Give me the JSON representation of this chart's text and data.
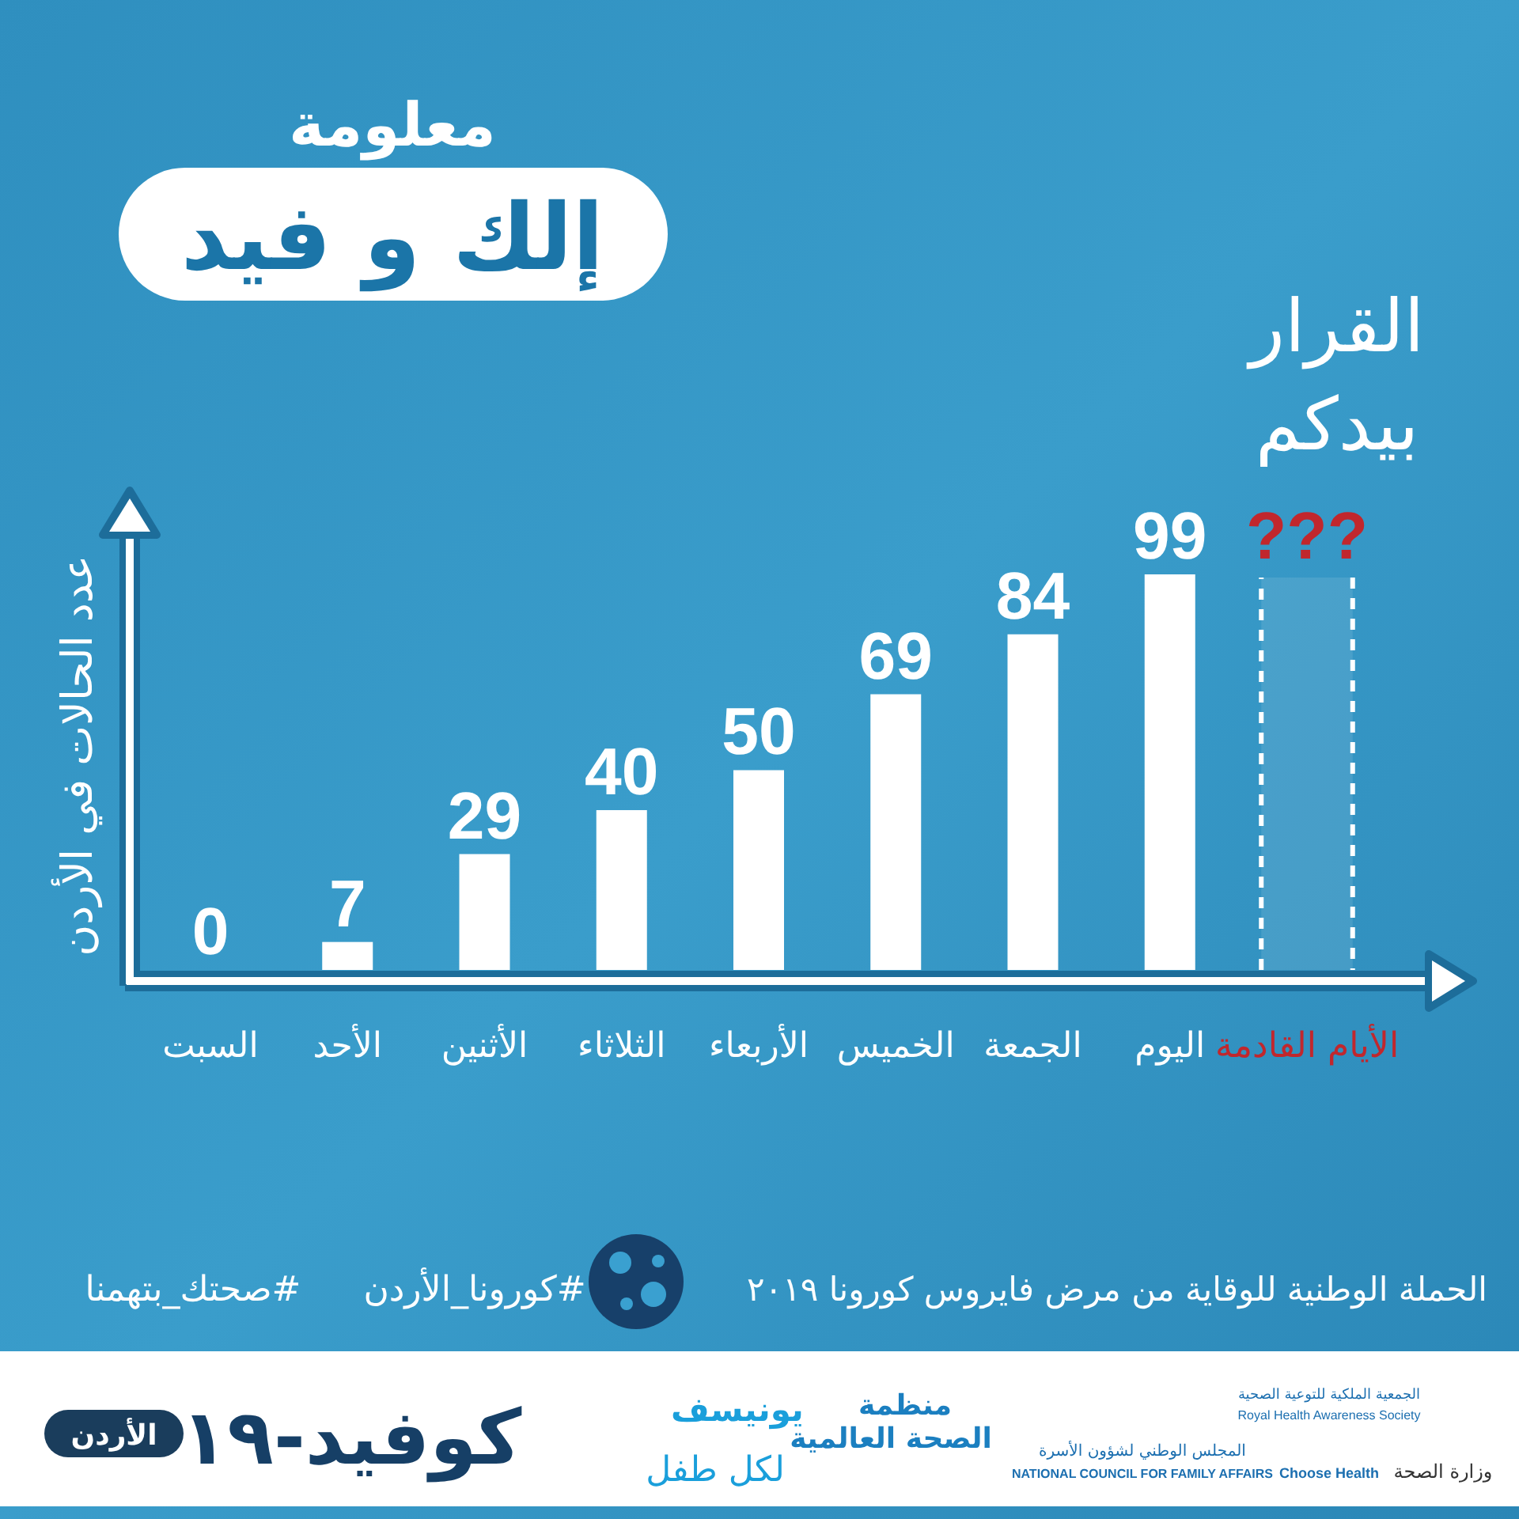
{
  "chart_data": {
    "type": "bar",
    "title": "معلومة",
    "subtitle": "إلك و فيد",
    "ylabel": "عدد الحالات في الأردن",
    "categories": [
      "السبت",
      "الأحد",
      "الأثنين",
      "الثلاثاء",
      "الأربعاء",
      "الخميس",
      "الجمعة",
      "اليوم",
      "الأيام القادمة"
    ],
    "values": [
      0,
      7,
      29,
      40,
      50,
      69,
      84,
      99,
      null
    ],
    "value_labels": [
      "0",
      "7",
      "29",
      "40",
      "50",
      "69",
      "84",
      "99",
      "???"
    ],
    "colors": [
      "#ffffff",
      "#ffffff",
      "#ffffff",
      "#ffffff",
      "#ffffff",
      "#ffffff",
      "#ffffff",
      "#ffffff",
      "#c1272d"
    ],
    "bands": [
      {
        "axis": "x",
        "from": "الأيام القادمة",
        "to": "الأيام القادمة",
        "color": "#ffffff"
      }
    ],
    "annotations": [
      "القرار\nبيدكم",
      "الحملة الوطنية للوقاية من مرض فايروس كورونا ٢٠١٩",
      "#كورونا_الأردن",
      "#صحتك_بتهمنا",
      "كوفيد-١٩",
      "الأردن",
      "يونيسف",
      "لكل طفل",
      "منظمة",
      "الصحة العالمية",
      "المجلس الوطني لشؤون الأسرة",
      "NATIONAL COUNCIL FOR FAMILY AFFAIRS",
      "الجمعية الملكية للتوعية الصحية",
      "Royal Health Awareness Society",
      "Choose Health",
      "وزارة الصحة"
    ]
  }
}
